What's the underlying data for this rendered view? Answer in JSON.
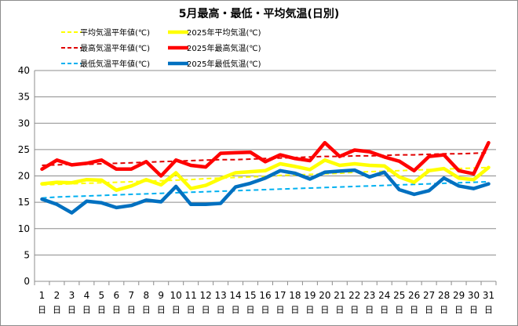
{
  "chart_data": {
    "type": "line",
    "title": "5月最高・最低・平均気温(日別)",
    "x": [
      "1",
      "2",
      "3",
      "4",
      "5",
      "6",
      "7",
      "8",
      "9",
      "10",
      "11",
      "12",
      "13",
      "14",
      "15",
      "16",
      "17",
      "18",
      "19",
      "20",
      "21",
      "22",
      "23",
      "24",
      "25",
      "26",
      "27",
      "28",
      "29",
      "30",
      "31"
    ],
    "x_suffix": "日",
    "ylim": [
      0,
      40
    ],
    "yticks": [
      0,
      5,
      10,
      15,
      20,
      25,
      30,
      35,
      40
    ],
    "grid": true,
    "legend_position": "top",
    "series": [
      {
        "name": "平均気温平年値(℃)",
        "color": "#ffff00",
        "style": "dashed",
        "values": [
          18.3,
          18.4,
          18.5,
          18.6,
          18.7,
          18.8,
          18.9,
          19.0,
          19.1,
          19.2,
          19.3,
          19.5,
          19.6,
          19.7,
          19.8,
          19.9,
          20.1,
          20.2,
          20.3,
          20.4,
          20.5,
          20.7,
          20.8,
          20.9,
          21.0,
          21.1,
          21.2,
          21.3,
          21.4,
          21.5,
          21.6
        ]
      },
      {
        "name": "2025年平均気温(℃)",
        "color": "#ffff00",
        "style": "solid",
        "values": [
          18.5,
          18.8,
          18.7,
          19.3,
          19.2,
          17.3,
          18.1,
          19.3,
          18.3,
          20.6,
          17.6,
          18.2,
          19.5,
          20.6,
          20.8,
          21.0,
          22.3,
          21.8,
          21.2,
          23.0,
          22.0,
          22.3,
          22.0,
          21.9,
          19.8,
          18.8,
          21.0,
          21.4,
          19.6,
          19.3,
          21.6
        ]
      },
      {
        "name": "最高気温平年値(℃)",
        "color": "#e00000",
        "style": "dashed",
        "values": [
          22.0,
          22.1,
          22.2,
          22.2,
          22.3,
          22.4,
          22.5,
          22.6,
          22.7,
          22.8,
          22.9,
          23.0,
          23.1,
          23.1,
          23.2,
          23.3,
          23.4,
          23.5,
          23.6,
          23.7,
          23.7,
          23.8,
          23.8,
          23.9,
          24.0,
          24.0,
          24.1,
          24.2,
          24.2,
          24.3,
          24.4
        ]
      },
      {
        "name": "2025年最高気温(℃)",
        "color": "#ff0000",
        "style": "solid",
        "values": [
          21.3,
          23.0,
          22.1,
          22.4,
          23.0,
          21.3,
          21.3,
          22.7,
          20.0,
          23.0,
          22.0,
          21.7,
          24.3,
          24.4,
          24.5,
          22.7,
          24.0,
          23.3,
          22.9,
          26.3,
          23.7,
          24.9,
          24.6,
          23.6,
          22.8,
          21.0,
          23.7,
          24.0,
          21.0,
          20.4,
          26.3
        ]
      },
      {
        "name": "最低気温平年値(℃)",
        "color": "#00b0f0",
        "style": "dashed",
        "values": [
          15.8,
          16.0,
          16.1,
          16.2,
          16.3,
          16.4,
          16.5,
          16.6,
          16.7,
          16.8,
          16.9,
          17.0,
          17.1,
          17.2,
          17.3,
          17.4,
          17.5,
          17.6,
          17.7,
          17.8,
          17.9,
          18.0,
          18.1,
          18.2,
          18.3,
          18.4,
          18.5,
          18.6,
          18.7,
          18.8,
          18.9
        ]
      },
      {
        "name": "2025年最低気温(℃)",
        "color": "#0070c0",
        "style": "solid",
        "values": [
          15.6,
          14.6,
          13.0,
          15.2,
          14.9,
          14.0,
          14.4,
          15.4,
          15.1,
          18.0,
          14.6,
          14.6,
          14.8,
          17.9,
          18.6,
          19.6,
          21.0,
          20.5,
          19.4,
          20.7,
          20.9,
          21.1,
          19.8,
          20.7,
          17.4,
          16.5,
          17.2,
          19.6,
          18.1,
          17.6,
          18.5
        ]
      }
    ]
  }
}
